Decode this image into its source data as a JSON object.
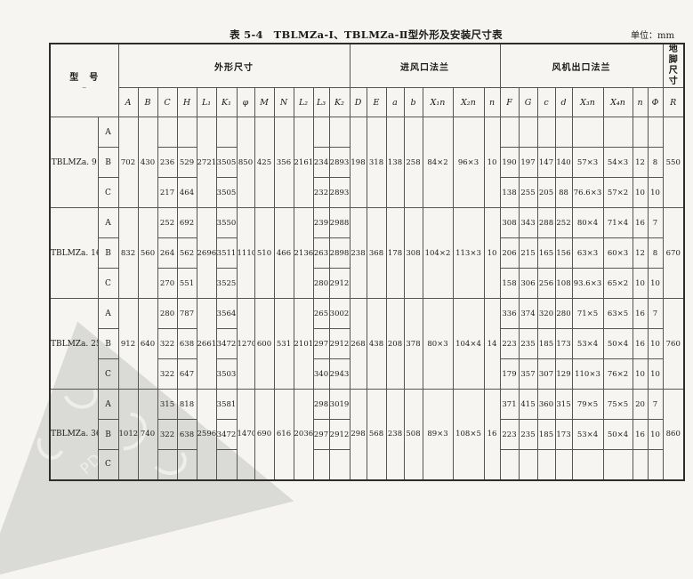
{
  "caption": {
    "title": "表 5-4　TBLMZa-Ⅰ、TBLMZa-Ⅱ型外形及安装尺寸表",
    "unit": "单位：mm"
  },
  "watermark": {
    "corner_text": "PD"
  },
  "table": {
    "groups": {
      "model": "型　号",
      "model_mark": "~",
      "outline": "外形尺寸",
      "inlet": "进风口法兰",
      "outlet": "风机出口法兰",
      "foot": "地脚尺寸"
    },
    "letters": [
      "A",
      "B",
      "C",
      "H",
      "L₁",
      "K₁",
      "φ",
      "M",
      "N",
      "L₂",
      "L₃",
      "K₂",
      "D",
      "E",
      "a",
      "b",
      "X₁n",
      "X₂n",
      "n",
      "F",
      "G",
      "c",
      "d",
      "X₃n",
      "X₄n",
      "n",
      "Φ",
      "R"
    ],
    "blocks": [
      {
        "model": "TBLMZa. 9",
        "span": {
          "A": "702",
          "B": "430",
          "L1": "2721",
          "phi": "850",
          "M": "425",
          "N": "356",
          "L2": "2161",
          "D": "198",
          "E": "318",
          "a": "138",
          "b": "258",
          "X1n": "84×2",
          "X2n": "96×3",
          "n1": "10",
          "R": "550"
        },
        "rows": [
          {
            "variant": "A",
            "cells": {}
          },
          {
            "variant": "B",
            "cells": {
              "C": "236",
              "H": "529",
              "K1": "3505",
              "L3": "234",
              "K2": "2893",
              "F": "190",
              "G": "197",
              "c": "147",
              "d": "140",
              "X3n": "57×3",
              "X4n": "54×3",
              "n2": "12",
              "Phi": "8"
            }
          },
          {
            "variant": "C",
            "cells": {
              "C": "217",
              "H": "464",
              "K1": "3505",
              "L3": "232",
              "K2": "2893",
              "F": "138",
              "G": "255",
              "c": "205",
              "d": "88",
              "X3n": "76.6×3",
              "X4n": "57×2",
              "n2": "10",
              "Phi": "10"
            }
          }
        ]
      },
      {
        "model": "TBLMZa. 16",
        "span": {
          "A": "832",
          "B": "560",
          "L1": "2696",
          "phi": "1110",
          "M": "510",
          "N": "466",
          "L2": "2136",
          "D": "238",
          "E": "368",
          "a": "178",
          "b": "308",
          "X1n": "104×2",
          "X2n": "113×3",
          "n1": "10",
          "R": "670"
        },
        "rows": [
          {
            "variant": "A",
            "cells": {
              "C": "252",
              "H": "692",
              "K1": "3550",
              "L3": "239",
              "K2": "2988",
              "F": "308",
              "G": "343",
              "c": "288",
              "d": "252",
              "X3n": "80×4",
              "X4n": "71×4",
              "n2": "16",
              "Phi": "7"
            }
          },
          {
            "variant": "B",
            "cells": {
              "C": "264",
              "H": "562",
              "K1": "3511",
              "L3": "263",
              "K2": "2898",
              "F": "206",
              "G": "215",
              "c": "165",
              "d": "156",
              "X3n": "63×3",
              "X4n": "60×3",
              "n2": "12",
              "Phi": "8"
            }
          },
          {
            "variant": "C",
            "cells": {
              "C": "270",
              "H": "551",
              "K1": "3525",
              "L3": "280",
              "K2": "2912",
              "F": "158",
              "G": "306",
              "c": "256",
              "d": "108",
              "X3n": "93.6×3",
              "X4n": "65×2",
              "n2": "10",
              "Phi": "10"
            }
          }
        ]
      },
      {
        "model": "TBLMZa. 25",
        "span": {
          "A": "912",
          "B": "640",
          "L1": "2661",
          "phi": "1270",
          "M": "600",
          "N": "531",
          "L2": "2101",
          "D": "268",
          "E": "438",
          "a": "208",
          "b": "378",
          "X1n": "80×3",
          "X2n": "104×4",
          "n1": "14",
          "R": "760"
        },
        "rows": [
          {
            "variant": "A",
            "cells": {
              "C": "280",
              "H": "787",
              "K1": "3564",
              "L3": "265",
              "K2": "3002",
              "F": "336",
              "G": "374",
              "c": "320",
              "d": "280",
              "X3n": "71×5",
              "X4n": "63×5",
              "n2": "16",
              "Phi": "7"
            }
          },
          {
            "variant": "B",
            "cells": {
              "C": "322",
              "H": "638",
              "K1": "3472",
              "L3": "297",
              "K2": "2912",
              "F": "223",
              "G": "235",
              "c": "185",
              "d": "173",
              "X3n": "53×4",
              "X4n": "50×4",
              "n2": "16",
              "Phi": "10"
            }
          },
          {
            "variant": "C",
            "cells": {
              "C": "322",
              "H": "647",
              "K1": "3503",
              "L3": "340",
              "K2": "2943",
              "F": "179",
              "G": "357",
              "c": "307",
              "d": "129",
              "X3n": "110×3",
              "X4n": "76×2",
              "n2": "10",
              "Phi": "10"
            }
          }
        ]
      },
      {
        "model": "TBLMZa. 36",
        "span": {
          "A": "1012",
          "B": "740",
          "L1": "2596",
          "phi": "1470",
          "M": "690",
          "N": "616",
          "L2": "2036",
          "D": "298",
          "E": "568",
          "a": "238",
          "b": "508",
          "X1n": "89×3",
          "X2n": "108×5",
          "n1": "16",
          "R": "860"
        },
        "rows": [
          {
            "variant": "A",
            "cells": {
              "C": "315",
              "H": "818",
              "K1": "3581",
              "L3": "298",
              "K2": "3019",
              "F": "371",
              "G": "415",
              "c": "360",
              "d": "315",
              "X3n": "79×5",
              "X4n": "75×5",
              "n2": "20",
              "Phi": "7"
            }
          },
          {
            "variant": "B",
            "cells": {
              "C": "322",
              "H": "638",
              "K1": "3472",
              "L3": "297",
              "K2": "2912",
              "F": "223",
              "G": "235",
              "c": "185",
              "d": "173",
              "X3n": "53×4",
              "X4n": "50×4",
              "n2": "16",
              "Phi": "10"
            }
          },
          {
            "variant": "C",
            "cells": {}
          }
        ]
      }
    ]
  }
}
